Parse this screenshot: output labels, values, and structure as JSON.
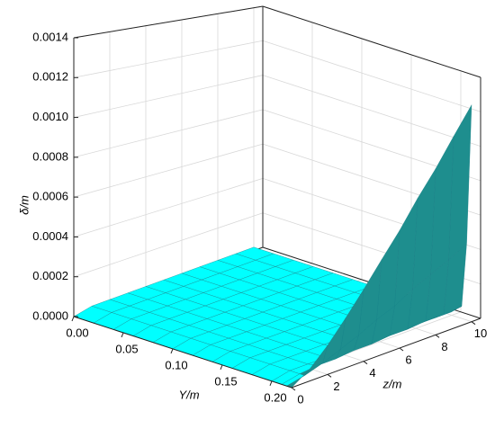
{
  "chart_data": {
    "type": "surface3d",
    "xlabel": "Y/m",
    "ylabel": "z/m",
    "zlabel": "δ/m",
    "Y": [
      0,
      0.02,
      0.04,
      0.06,
      0.08,
      0.1,
      0.12,
      0.14,
      0.16,
      0.18,
      0.2,
      0.21,
      0.215,
      0.22
    ],
    "z": [
      0,
      1,
      2,
      3,
      4,
      5,
      6,
      7,
      8,
      9,
      10
    ],
    "delta": [
      [
        0,
        0,
        0,
        0,
        0,
        0,
        0,
        0,
        0,
        0,
        0,
        0,
        0,
        0
      ],
      [
        2e-05,
        2e-05,
        2e-05,
        2e-05,
        2e-05,
        2e-05,
        2e-05,
        2e-05,
        2e-05,
        2e-05,
        2e-05,
        2e-05,
        2e-05,
        6e-05
      ],
      [
        2e-05,
        2e-05,
        2e-05,
        2e-05,
        2e-05,
        2e-05,
        2e-05,
        2e-05,
        2e-05,
        2e-05,
        2e-05,
        3e-05,
        5e-05,
        0.00015
      ],
      [
        2e-05,
        2e-05,
        2e-05,
        2e-05,
        2e-05,
        2e-05,
        2e-05,
        2e-05,
        2e-05,
        2e-05,
        2e-05,
        3e-05,
        9e-05,
        0.00026
      ],
      [
        2e-05,
        2e-05,
        2e-05,
        2e-05,
        2e-05,
        2e-05,
        2e-05,
        2e-05,
        2e-05,
        2e-05,
        2e-05,
        4e-05,
        0.00013,
        0.00038
      ],
      [
        2e-05,
        2e-05,
        2e-05,
        2e-05,
        2e-05,
        2e-05,
        2e-05,
        2e-05,
        2e-05,
        2e-05,
        2e-05,
        4e-05,
        0.00018,
        0.00051
      ],
      [
        2e-05,
        2e-05,
        2e-05,
        2e-05,
        2e-05,
        2e-05,
        2e-05,
        2e-05,
        2e-05,
        2e-05,
        2e-05,
        5e-05,
        0.00022,
        0.00064
      ],
      [
        2e-05,
        2e-05,
        2e-05,
        2e-05,
        2e-05,
        2e-05,
        2e-05,
        2e-05,
        2e-05,
        2e-05,
        2e-05,
        5e-05,
        0.00028,
        0.00079
      ],
      [
        2e-05,
        2e-05,
        2e-05,
        2e-05,
        2e-05,
        2e-05,
        2e-05,
        2e-05,
        2e-05,
        2e-05,
        2e-05,
        6e-05,
        0.00033,
        0.00093
      ],
      [
        2e-05,
        2e-05,
        2e-05,
        2e-05,
        2e-05,
        2e-05,
        2e-05,
        2e-05,
        2e-05,
        2e-05,
        2e-05,
        6e-05,
        0.00038,
        0.00109
      ],
      [
        2e-05,
        2e-05,
        2e-05,
        2e-05,
        2e-05,
        2e-05,
        2e-05,
        2e-05,
        2e-05,
        2e-05,
        2e-05,
        7e-05,
        0.00044,
        0.00125
      ]
    ],
    "Ylim": [
      0,
      0.22
    ],
    "Yticks": [
      {
        "value": 0,
        "label": "0.00"
      },
      0.05,
      {
        "value": 0.1,
        "label": "0.10"
      },
      0.15,
      {
        "value": 0.2,
        "label": "0.20"
      }
    ],
    "zlim": [
      0,
      10.5
    ],
    "zticks": [
      0,
      2,
      4,
      6,
      8,
      10
    ],
    "dlim": [
      0,
      0.0014
    ],
    "dticks": [
      {
        "value": 0,
        "label": "0.0000"
      },
      0.0002,
      0.0004,
      0.0006,
      0.0008,
      {
        "value": 0.001,
        "label": "0.0010"
      },
      0.0012,
      0.0014
    ],
    "surface_color": "#00ffff",
    "wall_color": "#1e8e8e",
    "grid": true
  }
}
